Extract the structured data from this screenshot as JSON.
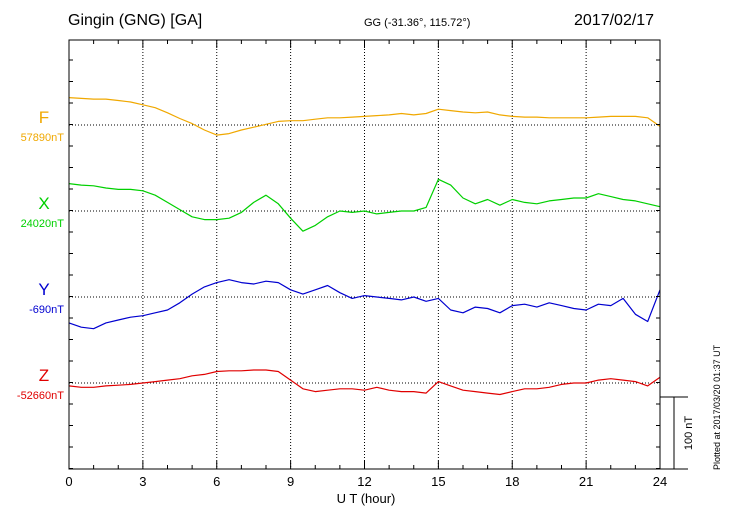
{
  "header": {
    "station": "Gingin (GNG)  [GA]",
    "coords": "GG (-31.36°, 115.72°)",
    "date": "2017/02/17"
  },
  "plotted_note": "Plotted at 2017/03/20 01:37 UT",
  "chart_data": {
    "type": "line",
    "xlabel": "U T (hour)",
    "xlim": [
      0,
      24
    ],
    "xticks": [
      "0",
      "3",
      "6",
      "9",
      "12",
      "15",
      "18",
      "21",
      "24"
    ],
    "grid": true,
    "scale_bar_label": "100 nT",
    "scale_bar_nT": 100,
    "series": [
      {
        "name": "F",
        "baseline_label": "57890nT",
        "baseline_nT": 57890,
        "color": "#f0a800",
        "x": [
          0,
          0.5,
          1,
          1.5,
          2,
          2.5,
          3,
          3.5,
          4,
          4.5,
          5,
          5.5,
          6,
          6.5,
          7,
          7.5,
          8,
          8.5,
          9,
          9.5,
          10,
          10.5,
          11,
          11.5,
          12,
          12.5,
          13,
          13.5,
          14,
          14.5,
          15,
          15.5,
          16,
          16.5,
          17,
          17.5,
          18,
          18.5,
          19,
          19.5,
          20,
          20.5,
          21,
          21.5,
          22,
          22.5,
          23,
          23.5,
          24
        ],
        "values": [
          38,
          37,
          36,
          36,
          34,
          32,
          28,
          24,
          17,
          9,
          2,
          -7,
          -14,
          -12,
          -7,
          -3,
          1,
          5,
          6,
          6,
          8,
          10,
          10,
          11,
          12,
          13,
          14,
          16,
          14,
          16,
          22,
          20,
          18,
          17,
          18,
          14,
          12,
          11,
          11,
          10,
          10,
          10,
          10,
          11,
          12,
          12,
          12,
          10,
          -2
        ]
      },
      {
        "name": "X",
        "baseline_label": "24020nT",
        "baseline_nT": 24020,
        "color": "#00d000",
        "x": [
          0,
          0.5,
          1,
          1.5,
          2,
          2.5,
          3,
          3.5,
          4,
          4.5,
          5,
          5.5,
          6,
          6.5,
          7,
          7.5,
          8,
          8.5,
          9,
          9.5,
          10,
          10.5,
          11,
          11.5,
          12,
          12.5,
          13,
          13.5,
          14,
          14.5,
          15,
          15.5,
          16,
          16.5,
          17,
          17.5,
          18,
          18.5,
          19,
          19.5,
          20,
          20.5,
          21,
          21.5,
          22,
          22.5,
          23,
          23.5,
          24
        ],
        "values": [
          38,
          36,
          35,
          32,
          30,
          30,
          28,
          22,
          12,
          2,
          -8,
          -12,
          -12,
          -10,
          -2,
          12,
          22,
          10,
          -10,
          -28,
          -20,
          -8,
          0,
          -2,
          0,
          -4,
          -2,
          0,
          0,
          5,
          44,
          36,
          18,
          10,
          16,
          8,
          16,
          12,
          10,
          14,
          16,
          18,
          18,
          24,
          20,
          16,
          14,
          10,
          6
        ]
      },
      {
        "name": "Y",
        "baseline_label": "-690nT",
        "baseline_nT": -690,
        "color": "#0000d0",
        "x": [
          0,
          0.5,
          1,
          1.5,
          2,
          2.5,
          3,
          3.5,
          4,
          4.5,
          5,
          5.5,
          6,
          6.5,
          7,
          7.5,
          8,
          8.5,
          9,
          9.5,
          10,
          10.5,
          11,
          11.5,
          12,
          12.5,
          13,
          13.5,
          14,
          14.5,
          15,
          15.5,
          16,
          16.5,
          17,
          17.5,
          18,
          18.5,
          19,
          19.5,
          20,
          20.5,
          21,
          21.5,
          22,
          22.5,
          23,
          23.5,
          24
        ],
        "values": [
          -36,
          -42,
          -44,
          -36,
          -32,
          -28,
          -26,
          -22,
          -18,
          -8,
          4,
          14,
          20,
          24,
          20,
          18,
          22,
          20,
          10,
          4,
          10,
          16,
          6,
          -2,
          2,
          0,
          -2,
          -4,
          0,
          -6,
          -2,
          -18,
          -22,
          -14,
          -16,
          -22,
          -12,
          -10,
          -14,
          -8,
          -12,
          -16,
          -18,
          -10,
          -12,
          -2,
          -24,
          -34,
          10
        ]
      },
      {
        "name": "Z",
        "baseline_label": "-52660nT",
        "baseline_nT": -52660,
        "color": "#e00000",
        "x": [
          0,
          0.5,
          1,
          1.5,
          2,
          2.5,
          3,
          3.5,
          4,
          4.5,
          5,
          5.5,
          6,
          6.5,
          7,
          7.5,
          8,
          8.5,
          9,
          9.5,
          10,
          10.5,
          11,
          11.5,
          12,
          12.5,
          13,
          13.5,
          14,
          14.5,
          15,
          15.5,
          16,
          16.5,
          17,
          17.5,
          18,
          18.5,
          19,
          19.5,
          20,
          20.5,
          21,
          21.5,
          22,
          22.5,
          23,
          23.5,
          24
        ],
        "values": [
          -4,
          -6,
          -6,
          -4,
          -3,
          -2,
          0,
          2,
          4,
          6,
          10,
          12,
          16,
          17,
          17,
          18,
          18,
          16,
          4,
          -8,
          -12,
          -10,
          -8,
          -8,
          -10,
          -6,
          -10,
          -12,
          -12,
          -14,
          2,
          -4,
          -10,
          -12,
          -14,
          -16,
          -12,
          -8,
          -8,
          -6,
          -2,
          0,
          0,
          4,
          6,
          4,
          2,
          -4,
          8
        ]
      }
    ]
  }
}
